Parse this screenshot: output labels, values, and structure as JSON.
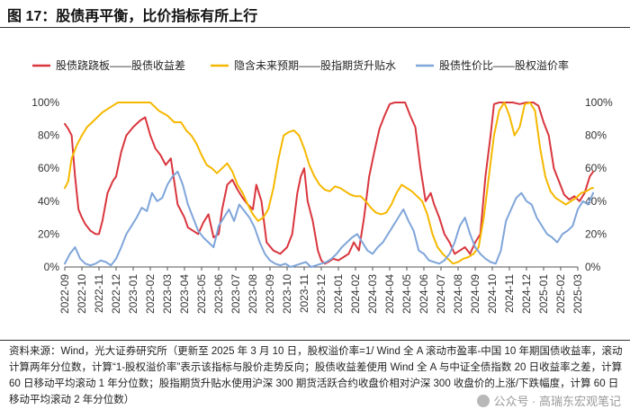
{
  "header": {
    "title": "图 17：股债再平衡，比价指标有所上行"
  },
  "source": {
    "text": "资料来源：Wind，光大证券研究所（更新至 2025 年 3 月 10 日，股权溢价率=1/ Wind 全 A 滚动市盈率-中国 10 年期国债收益率，滚动计算两年分位数，计算“1-股权溢价率”表示该指标与股价走势反向；股债收益差使用 Wind 全 A 与中证全债指数 20 日收益率之差，计算 60 日移动平均滚动 1 年分位数；股指期货升贴水使用沪深 300 期货活跃合约收盘价相对沪深 300 收盘价的上涨/下跌幅度，计算 60 日移动平均滚动 2 年分位数）"
  },
  "watermark": {
    "text": "公众号 · 高瑞东宏观笔记",
    "icon": "wechat-icon"
  },
  "chart_data": {
    "type": "line",
    "title": "",
    "xlabel": "",
    "ylabel_left": "",
    "ylabel_right": "",
    "ylim": [
      0,
      100
    ],
    "yticks": [
      "0%",
      "20%",
      "40%",
      "60%",
      "80%",
      "100%"
    ],
    "yticks_right": [
      "0%",
      "20%",
      "40%",
      "60%",
      "80%",
      "100%"
    ],
    "legend_position": "top",
    "categories": [
      "2022-09",
      "2022-10",
      "2022-11",
      "2022-12",
      "2023-01",
      "2023-02",
      "2023-03",
      "2023-04",
      "2023-05",
      "2023-06",
      "2023-07",
      "2023-08",
      "2023-09",
      "2023-10",
      "2023-11",
      "2023-12",
      "2024-01",
      "2024-02",
      "2024-03",
      "2024-04",
      "2024-05",
      "2024-06",
      "2024-07",
      "2024-08",
      "2024-09",
      "2024-10",
      "2024-11",
      "2024-12",
      "2025-01",
      "2025-02",
      "2025-03"
    ],
    "series": [
      {
        "name": "股债跷跷板——股债收益差",
        "color": "#d9363e",
        "x": [
          0,
          0.2,
          0.4,
          0.6,
          0.8,
          1.0,
          1.2,
          1.5,
          1.8,
          2.0,
          2.2,
          2.5,
          2.8,
          3.0,
          3.3,
          3.6,
          4.0,
          4.4,
          4.7,
          5.0,
          5.3,
          5.6,
          5.9,
          6.2,
          6.6,
          7.0,
          7.2,
          7.5,
          7.8,
          8.1,
          8.4,
          8.7,
          9.0,
          9.2,
          9.5,
          9.8,
          10.1,
          10.4,
          10.7,
          11.0,
          11.2,
          11.5,
          11.8,
          12.2,
          12.6,
          13.0,
          13.3,
          13.6,
          13.8,
          14.0,
          14.2,
          14.5,
          14.8,
          15.0,
          15.2,
          15.4,
          15.7,
          16.0,
          16.3,
          16.6,
          16.9,
          17.2,
          17.5,
          17.8,
          18.1,
          18.4,
          18.7,
          19.0,
          19.3,
          19.6,
          19.9,
          20.2,
          20.5,
          20.8,
          21.1,
          21.4,
          21.6,
          21.9,
          22.2,
          22.5,
          22.8,
          23.1,
          23.4,
          23.7,
          24.0,
          24.3,
          24.6,
          24.9,
          25.1,
          25.4,
          25.8,
          26.2,
          26.6,
          27.0,
          27.4,
          27.7,
          28.0,
          28.3,
          28.6,
          28.9,
          29.2,
          29.5,
          29.8,
          30.1,
          30.4,
          30.7,
          30.9
        ],
        "values": [
          87,
          84,
          80,
          55,
          35,
          30,
          26,
          22,
          20,
          20,
          28,
          45,
          52,
          55,
          70,
          80,
          85,
          89,
          91,
          80,
          72,
          68,
          62,
          66,
          38,
          30,
          24,
          22,
          20,
          27,
          32,
          18,
          20,
          35,
          50,
          53,
          47,
          42,
          38,
          35,
          50,
          40,
          15,
          10,
          8,
          12,
          20,
          45,
          55,
          60,
          40,
          28,
          10,
          4,
          2,
          3,
          5,
          4,
          6,
          8,
          15,
          10,
          30,
          55,
          70,
          84,
          92,
          99,
          100,
          100,
          100,
          92,
          85,
          60,
          40,
          45,
          38,
          30,
          20,
          15,
          8,
          10,
          12,
          8,
          15,
          20,
          55,
          80,
          99,
          100,
          100,
          100,
          99,
          100,
          100,
          98,
          88,
          80,
          60,
          52,
          44,
          41,
          43,
          40,
          45,
          55,
          58
        ]
      },
      {
        "name": "隐含未来预期——股指期货升贴水",
        "color": "#f5b800",
        "x": [
          0,
          0.2,
          0.4,
          0.7,
          1.0,
          1.3,
          1.6,
          1.9,
          2.2,
          2.5,
          2.8,
          3.1,
          3.4,
          3.7,
          4.0,
          4.5,
          5.0,
          5.5,
          6.0,
          6.4,
          6.8,
          7.1,
          7.4,
          7.7,
          8.0,
          8.3,
          8.6,
          8.9,
          9.2,
          9.5,
          9.8,
          10.1,
          10.4,
          10.7,
          11.0,
          11.3,
          11.6,
          11.9,
          12.2,
          12.5,
          12.8,
          13.1,
          13.4,
          13.7,
          14.0,
          14.3,
          14.6,
          14.9,
          15.2,
          15.5,
          15.8,
          16.1,
          16.4,
          16.7,
          17.0,
          17.3,
          17.6,
          17.9,
          18.2,
          18.5,
          18.8,
          19.1,
          19.4,
          19.7,
          20.0,
          20.3,
          20.6,
          20.9,
          21.2,
          21.5,
          21.8,
          22.1,
          22.4,
          22.7,
          23.0,
          23.3,
          23.6,
          23.9,
          24.2,
          24.5,
          24.8,
          25.1,
          25.4,
          25.7,
          26.0,
          26.3,
          26.6,
          26.9,
          27.2,
          27.5,
          27.8,
          28.1,
          28.4,
          28.7,
          29.0,
          29.3,
          29.6,
          29.9,
          30.2,
          30.5,
          30.8,
          30.9
        ],
        "values": [
          48,
          52,
          66,
          74,
          80,
          85,
          88,
          91,
          94,
          96,
          98,
          100,
          100,
          100,
          100,
          100,
          100,
          95,
          92,
          88,
          88,
          83,
          80,
          75,
          68,
          62,
          60,
          57,
          60,
          63,
          58,
          50,
          45,
          38,
          32,
          28,
          30,
          35,
          48,
          66,
          80,
          82,
          83,
          80,
          72,
          62,
          55,
          50,
          47,
          46,
          49,
          48,
          46,
          44,
          43,
          43,
          40,
          36,
          33,
          32,
          33,
          38,
          45,
          50,
          48,
          46,
          43,
          40,
          32,
          20,
          12,
          8,
          5,
          2,
          3,
          5,
          6,
          8,
          12,
          30,
          55,
          80,
          95,
          100,
          92,
          80,
          85,
          99,
          100,
          95,
          72,
          55,
          46,
          42,
          40,
          38,
          40,
          42,
          45,
          46,
          48,
          48
        ]
      },
      {
        "name": "股债性价比——股权溢价率",
        "color": "#7fa5d9",
        "x": [
          0,
          0.3,
          0.6,
          0.9,
          1.2,
          1.5,
          1.8,
          2.1,
          2.4,
          2.7,
          3.0,
          3.3,
          3.6,
          3.9,
          4.2,
          4.5,
          4.8,
          5.1,
          5.4,
          5.7,
          6.0,
          6.3,
          6.6,
          6.9,
          7.2,
          7.5,
          7.8,
          8.1,
          8.4,
          8.7,
          9.0,
          9.3,
          9.6,
          9.9,
          10.2,
          10.5,
          10.8,
          11.1,
          11.4,
          11.7,
          12.0,
          12.3,
          12.6,
          12.9,
          13.2,
          13.5,
          13.8,
          14.1,
          14.4,
          14.7,
          15.0,
          15.3,
          15.6,
          15.9,
          16.2,
          16.5,
          16.8,
          17.1,
          17.4,
          17.7,
          18.0,
          18.3,
          18.6,
          18.9,
          19.2,
          19.5,
          19.8,
          20.1,
          20.4,
          20.7,
          21.0,
          21.3,
          21.6,
          21.9,
          22.2,
          22.5,
          22.8,
          23.1,
          23.4,
          23.7,
          24.0,
          24.3,
          24.6,
          24.9,
          25.2,
          25.5,
          25.8,
          26.1,
          26.4,
          26.7,
          27.0,
          27.3,
          27.6,
          27.9,
          28.2,
          28.5,
          28.8,
          29.1,
          29.4,
          29.7,
          30.0,
          30.3,
          30.6,
          30.9
        ],
        "values": [
          2,
          8,
          12,
          5,
          2,
          1,
          2,
          4,
          3,
          1,
          5,
          12,
          20,
          25,
          30,
          36,
          34,
          45,
          40,
          42,
          50,
          55,
          58,
          50,
          38,
          30,
          22,
          18,
          15,
          12,
          25,
          30,
          35,
          28,
          38,
          34,
          30,
          24,
          15,
          8,
          4,
          2,
          1,
          2,
          0,
          1,
          2,
          3,
          0,
          1,
          2,
          3,
          5,
          8,
          12,
          15,
          18,
          20,
          15,
          10,
          8,
          12,
          15,
          20,
          25,
          30,
          35,
          28,
          22,
          10,
          8,
          4,
          3,
          2,
          4,
          8,
          15,
          25,
          30,
          20,
          12,
          8,
          5,
          3,
          2,
          10,
          28,
          35,
          42,
          45,
          40,
          38,
          30,
          25,
          20,
          18,
          15,
          20,
          22,
          25,
          35,
          40,
          38,
          45
        ]
      }
    ]
  }
}
